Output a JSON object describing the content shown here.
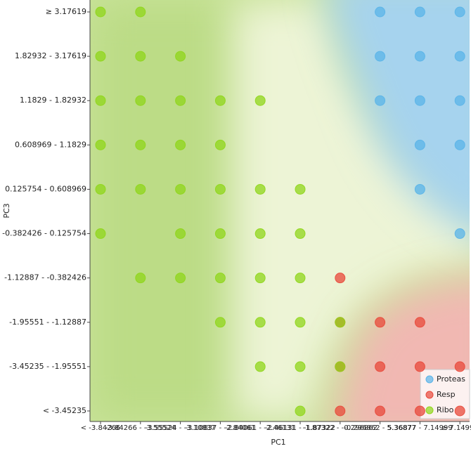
{
  "chart_data": {
    "type": "scatter",
    "x_label": "PC1",
    "y_label": "PC3",
    "x_categories": [
      "< -3.84266",
      "-3.84266 - -3.55524",
      "-3.55524 - -3.10837",
      "-3.10837 - -2.84061",
      "-2.84061 - -2.46131",
      "-2.46131 - -1.87322",
      "-1.87322 - -0.296862",
      "-0.296862 - 5.36877",
      "5.36877 - 7.14999",
      "≥ 7.14999"
    ],
    "y_categories": [
      "< -3.45235",
      "-3.45235 - -1.95551",
      "-1.95551 - -1.12887",
      "-1.12887 - -0.382426",
      "-0.382426 - 0.125754",
      "0.125754 - 0.608969",
      "0.608969 - 1.1829",
      "1.1829 - 1.82932",
      "1.82932 - 3.17619",
      "≥ 3.17619"
    ],
    "legend": "bottom-right",
    "series": [
      {
        "name": "Proteas",
        "color": "#5ab4e8",
        "x": [
          "-0.296862 - 5.36877",
          "5.36877 - 7.14999",
          "≥ 7.14999",
          "-0.296862 - 5.36877",
          "5.36877 - 7.14999",
          "≥ 7.14999",
          "-0.296862 - 5.36877",
          "5.36877 - 7.14999",
          "≥ 7.14999",
          "5.36877 - 7.14999",
          "≥ 7.14999",
          "5.36877 - 7.14999",
          "≥ 7.14999"
        ],
        "y": [
          "≥ 3.17619",
          "≥ 3.17619",
          "≥ 3.17619",
          "1.82932 - 3.17619",
          "1.82932 - 3.17619",
          "1.82932 - 3.17619",
          "1.1829 - 1.82932",
          "1.1829 - 1.82932",
          "1.1829 - 1.82932",
          "0.608969 - 1.1829",
          "0.608969 - 1.1829",
          "0.125754 - 0.608969",
          "-0.382426 - 0.125754"
        ]
      },
      {
        "name": "Resp",
        "color": "#e8483a",
        "x": [
          "-1.87322 - -0.296862",
          "-1.87322 - -0.296862",
          "-0.296862 - 5.36877",
          "5.36877 - 7.14999",
          "-1.87322 - -0.296862",
          "-0.296862 - 5.36877",
          "5.36877 - 7.14999",
          "≥ 7.14999",
          "-1.87322 - -0.296862",
          "-0.296862 - 5.36877",
          "5.36877 - 7.14999",
          "≥ 7.14999"
        ],
        "y": [
          "-1.12887 - -0.382426",
          "-1.95551 - -1.12887",
          "-1.95551 - -1.12887",
          "-1.95551 - -1.12887",
          "-3.45235 - -1.95551",
          "-3.45235 - -1.95551",
          "-3.45235 - -1.95551",
          "-3.45235 - -1.95551",
          "< -3.45235",
          "< -3.45235",
          "< -3.45235",
          "< -3.45235"
        ]
      },
      {
        "name": "Ribo",
        "color": "#8fd61a",
        "x": [
          "< -3.84266",
          "-3.84266 - -3.55524",
          "< -3.84266",
          "-3.84266 - -3.55524",
          "-3.55524 - -3.10837",
          "< -3.84266",
          "-3.84266 - -3.55524",
          "-3.55524 - -3.10837",
          "-3.10837 - -2.84061",
          "-2.84061 - -2.46131",
          "< -3.84266",
          "-3.84266 - -3.55524",
          "-3.55524 - -3.10837",
          "-3.10837 - -2.84061",
          "< -3.84266",
          "-3.84266 - -3.55524",
          "-3.55524 - -3.10837",
          "-3.10837 - -2.84061",
          "-2.84061 - -2.46131",
          "-2.46131 - -1.87322",
          "< -3.84266",
          "-3.55524 - -3.10837",
          "-3.10837 - -2.84061",
          "-2.84061 - -2.46131",
          "-2.46131 - -1.87322",
          "-3.84266 - -3.55524",
          "-3.55524 - -3.10837",
          "-3.10837 - -2.84061",
          "-2.84061 - -2.46131",
          "-2.46131 - -1.87322",
          "-3.10837 - -2.84061",
          "-2.84061 - -2.46131",
          "-2.46131 - -1.87322",
          "-1.87322 - -0.296862",
          "-2.84061 - -2.46131",
          "-2.46131 - -1.87322",
          "-1.87322 - -0.296862",
          "-2.46131 - -1.87322"
        ],
        "y": [
          "≥ 3.17619",
          "≥ 3.17619",
          "1.82932 - 3.17619",
          "1.82932 - 3.17619",
          "1.82932 - 3.17619",
          "1.1829 - 1.82932",
          "1.1829 - 1.82932",
          "1.1829 - 1.82932",
          "1.1829 - 1.82932",
          "1.1829 - 1.82932",
          "0.608969 - 1.1829",
          "0.608969 - 1.1829",
          "0.608969 - 1.1829",
          "0.608969 - 1.1829",
          "0.125754 - 0.608969",
          "0.125754 - 0.608969",
          "0.125754 - 0.608969",
          "0.125754 - 0.608969",
          "0.125754 - 0.608969",
          "0.125754 - 0.608969",
          "-0.382426 - 0.125754",
          "-0.382426 - 0.125754",
          "-0.382426 - 0.125754",
          "-0.382426 - 0.125754",
          "-0.382426 - 0.125754",
          "-1.12887 - -0.382426",
          "-1.12887 - -0.382426",
          "-1.12887 - -0.382426",
          "-1.12887 - -0.382426",
          "-1.12887 - -0.382426",
          "-1.95551 - -1.12887",
          "-1.95551 - -1.12887",
          "-1.95551 - -1.12887",
          "-1.95551 - -1.12887",
          "-3.45235 - -1.95551",
          "-3.45235 - -1.95551",
          "-3.45235 - -1.95551",
          "< -3.45235"
        ]
      }
    ]
  }
}
